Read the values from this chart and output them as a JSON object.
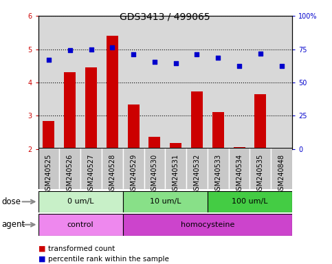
{
  "title": "GDS3413 / 499065",
  "samples": [
    "GSM240525",
    "GSM240526",
    "GSM240527",
    "GSM240528",
    "GSM240529",
    "GSM240530",
    "GSM240531",
    "GSM240532",
    "GSM240533",
    "GSM240534",
    "GSM240535",
    "GSM240848"
  ],
  "bar_values": [
    2.85,
    4.3,
    4.45,
    5.4,
    3.35,
    2.38,
    2.18,
    3.73,
    3.12,
    2.07,
    3.65,
    2.05
  ],
  "scatter_values": [
    4.68,
    4.97,
    5.0,
    5.05,
    4.85,
    4.62,
    4.58,
    4.85,
    4.75,
    4.5,
    4.87,
    4.5
  ],
  "bar_color": "#cc0000",
  "scatter_color": "#0000cc",
  "bar_bottom": 2.0,
  "ylim_left": [
    2.0,
    6.0
  ],
  "ylim_right": [
    0,
    100
  ],
  "yticks_left": [
    2,
    3,
    4,
    5,
    6
  ],
  "yticks_right": [
    0,
    25,
    50,
    75,
    100
  ],
  "yticklabels_right": [
    "0",
    "25",
    "50",
    "75",
    "100%"
  ],
  "dose_groups": [
    {
      "label": "0 um/L",
      "start": 0,
      "end": 4,
      "color": "#c8f0c8"
    },
    {
      "label": "10 um/L",
      "start": 4,
      "end": 8,
      "color": "#88e088"
    },
    {
      "label": "100 um/L",
      "start": 8,
      "end": 12,
      "color": "#44cc44"
    }
  ],
  "agent_groups": [
    {
      "label": "control",
      "start": 0,
      "end": 4,
      "color": "#ee88ee"
    },
    {
      "label": "homocysteine",
      "start": 4,
      "end": 12,
      "color": "#cc44cc"
    }
  ],
  "legend_bar_label": "transformed count",
  "legend_scatter_label": "percentile rank within the sample",
  "dose_label": "dose",
  "agent_label": "agent",
  "plot_bg_color": "#d8d8d8",
  "xtick_bg_color": "#c8c8c8",
  "grid_linestyle": "dotted",
  "title_fontsize": 10,
  "tick_fontsize": 7,
  "label_fontsize": 8.5,
  "legend_fontsize": 7.5
}
